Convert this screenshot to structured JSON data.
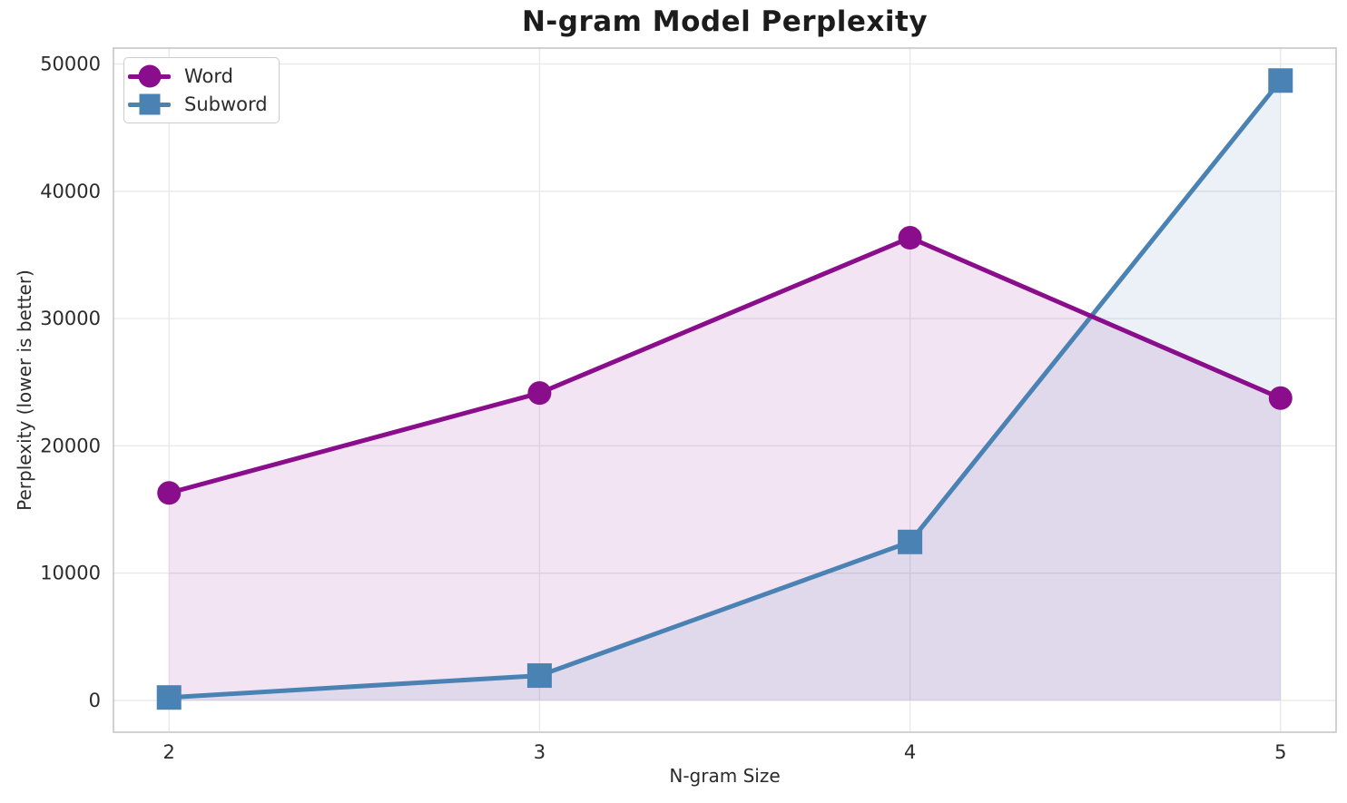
{
  "chart_data": {
    "type": "line",
    "title": "N-gram Model Perplexity",
    "xlabel": "N-gram Size",
    "ylabel": "Perplexity (lower is better)",
    "x": [
      2,
      3,
      4,
      5
    ],
    "series": [
      {
        "name": "Word",
        "marker": "circle",
        "color": "#8A0D8C",
        "values": [
          16300,
          24150,
          36350,
          23750
        ]
      },
      {
        "name": "Subword",
        "marker": "square",
        "color": "#4A82B4",
        "values": [
          230,
          1950,
          12450,
          48700
        ]
      }
    ],
    "xlim": [
      1.85,
      5.15
    ],
    "ylim": [
      -2500,
      51250
    ],
    "xticks": [
      2,
      3,
      4,
      5
    ],
    "yticks": [
      0,
      10000,
      20000,
      30000,
      40000,
      50000
    ],
    "grid": true,
    "legend_position": "upper-left",
    "fill_to_baseline": 0,
    "fill_opacity": 0.11,
    "line_width": 5,
    "marker_radius": 13,
    "square_side": 27
  }
}
